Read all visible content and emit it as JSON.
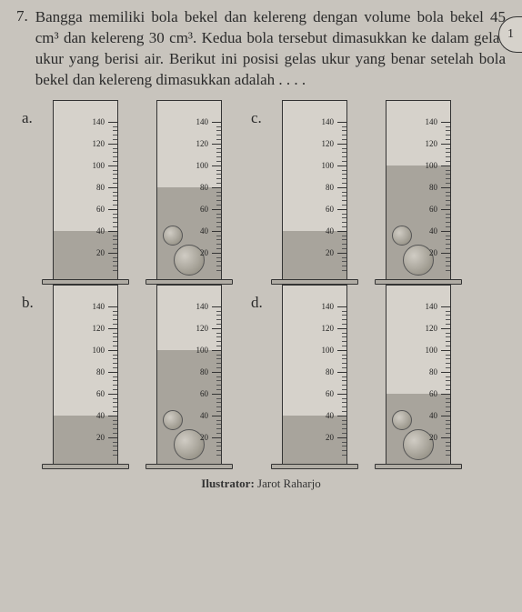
{
  "question": {
    "number": "7.",
    "text": "Bangga memiliki bola bekel dan kelereng dengan volume bola bekel 45 cm³ dan kelereng 30 cm³. Kedua bola tersebut dimasukkan ke dalam gelas ukur yang berisi air. Berikut ini posisi gelas ukur yang benar setelah bola bekel dan kelereng dimasukkan adalah . . . ."
  },
  "options": {
    "a": "a.",
    "b": "b.",
    "c": "c.",
    "d": "d."
  },
  "scale": {
    "unit": "mL",
    "ticks": [
      140,
      120,
      100,
      80,
      60,
      40,
      20
    ]
  },
  "cylinders": {
    "a": {
      "left_water": 40,
      "right_water": 80
    },
    "b": {
      "left_water": 40,
      "right_water": 100
    },
    "c": {
      "left_water": 40,
      "right_water": 100
    },
    "d": {
      "left_water": 40,
      "right_water": 60
    },
    "colors": {
      "cylinder_bg": "#d6d2cb",
      "water": "#a8a49c",
      "border": "#333333"
    }
  },
  "illustrator": {
    "label": "Ilustrator:",
    "name": "Jarot Raharjo"
  },
  "edge_marker": "1"
}
